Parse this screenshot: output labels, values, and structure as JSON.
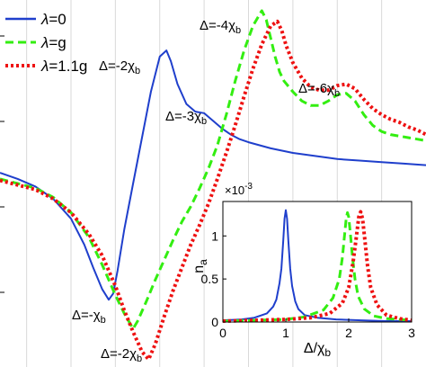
{
  "chart_data": [
    {
      "type": "line",
      "title": "",
      "xlabel": "",
      "ylabel": "",
      "xlim": [
        -7.6,
        2.0
      ],
      "ylim": [
        -1.25,
        1.15
      ],
      "grid": true,
      "legend": {
        "placement": "top-left",
        "entries": [
          {
            "symbol": "λ",
            "label": "=0"
          },
          {
            "symbol": "λ",
            "label": "=g"
          },
          {
            "symbol": "λ",
            "label": "=1.1g"
          }
        ]
      },
      "series": [
        {
          "name": "λ=0",
          "color": "#1f3fcc",
          "dash": "solid",
          "x": [
            -7.6,
            -7.2,
            -6.8,
            -6.4,
            -6.0,
            -5.7,
            -5.5,
            -5.3,
            -5.15,
            -5.05,
            -4.95,
            -4.8,
            -4.6,
            -4.4,
            -4.2,
            -4.0,
            -3.85,
            -3.75,
            -3.6,
            -3.4,
            -3.2,
            -3.0,
            -2.8,
            -2.6,
            -2.4,
            -2.2,
            -2.0,
            -1.5,
            -1.0,
            -0.5,
            0.0,
            0.5,
            1.0,
            1.5,
            2.0
          ],
          "y": [
            0.02,
            -0.02,
            -0.07,
            -0.15,
            -0.28,
            -0.45,
            -0.6,
            -0.74,
            -0.81,
            -0.77,
            -0.62,
            -0.35,
            -0.05,
            0.25,
            0.55,
            0.78,
            0.82,
            0.75,
            0.6,
            0.47,
            0.42,
            0.41,
            0.36,
            0.31,
            0.27,
            0.24,
            0.22,
            0.18,
            0.15,
            0.13,
            0.11,
            0.1,
            0.09,
            0.08,
            0.07
          ]
        },
        {
          "name": "λ=g",
          "color": "#33ee11",
          "dash": "dashed",
          "x": [
            -7.6,
            -7.2,
            -6.8,
            -6.4,
            -6.0,
            -5.6,
            -5.3,
            -5.0,
            -4.8,
            -4.6,
            -4.5,
            -4.3,
            -4.1,
            -3.9,
            -3.7,
            -3.5,
            -3.3,
            -3.1,
            -2.9,
            -2.7,
            -2.5,
            -2.3,
            -2.1,
            -1.9,
            -1.7,
            -1.6,
            -1.5,
            -1.4,
            -1.3,
            -1.2,
            -1.0,
            -0.8,
            -0.6,
            -0.4,
            -0.2,
            0.0,
            0.2,
            0.4,
            0.6,
            0.8,
            1.0,
            1.2,
            1.4,
            1.6,
            1.8,
            2.0
          ],
          "y": [
            -0.02,
            -0.05,
            -0.08,
            -0.14,
            -0.24,
            -0.4,
            -0.58,
            -0.78,
            -0.9,
            -1.0,
            -0.95,
            -0.82,
            -0.68,
            -0.55,
            -0.42,
            -0.3,
            -0.2,
            -0.08,
            0.05,
            0.2,
            0.4,
            0.62,
            0.82,
            0.98,
            1.08,
            1.02,
            0.9,
            0.78,
            0.68,
            0.62,
            0.55,
            0.49,
            0.46,
            0.46,
            0.49,
            0.53,
            0.54,
            0.49,
            0.4,
            0.33,
            0.29,
            0.27,
            0.26,
            0.25,
            0.24,
            0.23
          ]
        },
        {
          "name": "λ=1.1g",
          "color": "#ee1111",
          "dash": "dotted",
          "x": [
            -7.6,
            -7.2,
            -6.8,
            -6.4,
            -6.0,
            -5.6,
            -5.3,
            -5.0,
            -4.8,
            -4.6,
            -4.4,
            -4.25,
            -4.1,
            -3.9,
            -3.7,
            -3.5,
            -3.3,
            -3.1,
            -2.9,
            -2.7,
            -2.5,
            -2.3,
            -2.1,
            -1.9,
            -1.7,
            -1.5,
            -1.35,
            -1.25,
            -1.15,
            -1.0,
            -0.8,
            -0.6,
            -0.4,
            -0.2,
            0.0,
            0.2,
            0.4,
            0.6,
            0.8,
            1.0,
            1.2,
            1.4,
            1.6,
            1.8,
            2.0
          ],
          "y": [
            -0.03,
            -0.06,
            -0.09,
            -0.15,
            -0.24,
            -0.38,
            -0.52,
            -0.72,
            -0.88,
            -1.02,
            -1.15,
            -1.2,
            -1.1,
            -0.92,
            -0.75,
            -0.6,
            -0.45,
            -0.32,
            -0.18,
            -0.02,
            0.15,
            0.33,
            0.52,
            0.7,
            0.86,
            0.98,
            1.01,
            0.95,
            0.85,
            0.74,
            0.64,
            0.58,
            0.56,
            0.56,
            0.59,
            0.6,
            0.57,
            0.5,
            0.44,
            0.4,
            0.37,
            0.35,
            0.32,
            0.3,
            0.27
          ]
        }
      ],
      "annotations": [
        {
          "label": "Δ=-χ",
          "sub": "b"
        },
        {
          "label": "Δ=-2χ",
          "sub": "b"
        },
        {
          "label": "Δ=-3χ",
          "sub": "b"
        },
        {
          "label": "Δ=-4χ",
          "sub": "b"
        },
        {
          "label": "Δ=-6χ",
          "sub": "b"
        },
        {
          "label": "Δ=-2χ",
          "sub": "b"
        }
      ]
    },
    {
      "type": "line",
      "title": "",
      "xlabel": "Δ/χ",
      "xlabel_sub": "b",
      "ylabel": "n",
      "ylabel_sub": "a",
      "exponent_label": "×10",
      "exponent_power": "-3",
      "xlim": [
        0,
        3
      ],
      "ylim": [
        0,
        1.4
      ],
      "x_ticks": [
        "0",
        "1",
        "2",
        "3"
      ],
      "y_ticks": [
        "0",
        "0.5",
        "1"
      ],
      "y_tick_values": [
        0,
        0.5,
        1
      ],
      "grid": false,
      "series": [
        {
          "name": "λ=0",
          "color": "#1f3fcc",
          "dash": "solid",
          "x": [
            0.0,
            0.3,
            0.5,
            0.7,
            0.8,
            0.85,
            0.9,
            0.93,
            0.96,
            0.98,
            1.0,
            1.02,
            1.04,
            1.07,
            1.1,
            1.15,
            1.2,
            1.3,
            1.5,
            1.8,
            2.2,
            2.6,
            3.0
          ],
          "y": [
            0.02,
            0.03,
            0.05,
            0.1,
            0.18,
            0.26,
            0.45,
            0.62,
            0.95,
            1.2,
            1.3,
            1.2,
            0.95,
            0.62,
            0.42,
            0.24,
            0.15,
            0.08,
            0.05,
            0.03,
            0.02,
            0.01,
            0.01
          ]
        },
        {
          "name": "λ=g",
          "color": "#33ee11",
          "dash": "dashed",
          "x": [
            0.0,
            0.5,
            1.0,
            1.3,
            1.6,
            1.75,
            1.85,
            1.9,
            1.93,
            1.96,
            1.98,
            2.0,
            2.03,
            2.06,
            2.1,
            2.15,
            2.25,
            2.4,
            2.6,
            3.0
          ],
          "y": [
            0.01,
            0.02,
            0.03,
            0.06,
            0.14,
            0.28,
            0.5,
            0.75,
            0.98,
            1.2,
            1.27,
            1.22,
            1.0,
            0.75,
            0.5,
            0.3,
            0.15,
            0.07,
            0.04,
            0.02
          ]
        },
        {
          "name": "λ=1.1g",
          "color": "#ee1111",
          "dash": "dotted",
          "x": [
            0.0,
            0.5,
            1.0,
            1.4,
            1.7,
            1.9,
            2.0,
            2.07,
            2.12,
            2.16,
            2.19,
            2.22,
            2.25,
            2.3,
            2.35,
            2.45,
            2.6,
            2.8,
            3.0
          ],
          "y": [
            0.01,
            0.02,
            0.03,
            0.05,
            0.1,
            0.22,
            0.4,
            0.7,
            0.98,
            1.22,
            1.28,
            1.2,
            1.0,
            0.65,
            0.4,
            0.2,
            0.08,
            0.04,
            0.02
          ]
        }
      ]
    }
  ]
}
